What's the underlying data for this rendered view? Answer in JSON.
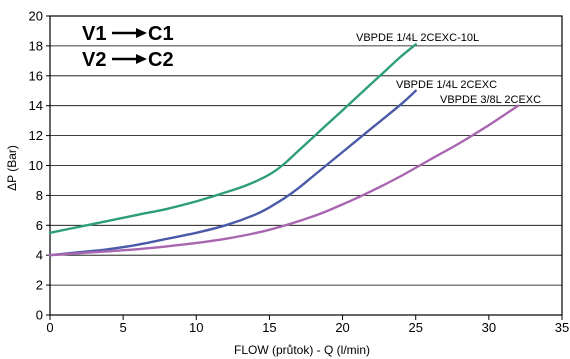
{
  "chart_data": {
    "type": "line",
    "title": "",
    "xlabel": "FLOW (průtok) - Q (l/min)",
    "ylabel": "ΔP (Bar)",
    "xlim": [
      0,
      35
    ],
    "ylim": [
      0,
      20
    ],
    "xticks": [
      0,
      5,
      10,
      15,
      20,
      25,
      30,
      35
    ],
    "yticks": [
      0,
      2,
      4,
      6,
      8,
      10,
      12,
      14,
      16,
      18,
      20
    ],
    "grid": "horizontal",
    "annotations": [
      "V1",
      "C1",
      "V2",
      "C2"
    ],
    "series": [
      {
        "name": "VBPDE 1/4L 2CEXC-10L",
        "color": "#2e9e78",
        "x": [
          0,
          2,
          4,
          6,
          8,
          10,
          12,
          13.5,
          15,
          16,
          17,
          18,
          19,
          20,
          21,
          22,
          23,
          24,
          25
        ],
        "y": [
          5.5,
          5.9,
          6.3,
          6.7,
          7.1,
          7.6,
          8.2,
          8.7,
          9.4,
          10.1,
          11.0,
          11.9,
          12.8,
          13.7,
          14.6,
          15.5,
          16.4,
          17.3,
          18.1
        ]
      },
      {
        "name": "VBPDE 1/4L 2CEXC",
        "color": "#4a5aa8",
        "x": [
          0,
          2,
          4,
          6,
          8,
          10,
          12,
          14,
          15,
          16,
          17,
          18,
          19,
          20,
          21,
          22,
          23,
          24,
          25
        ],
        "y": [
          4.0,
          4.2,
          4.4,
          4.7,
          5.1,
          5.5,
          6.0,
          6.7,
          7.2,
          7.8,
          8.5,
          9.3,
          10.1,
          10.9,
          11.7,
          12.5,
          13.3,
          14.1,
          15.0
        ]
      },
      {
        "name": "VBPDE 3/8L 2CEXC",
        "color": "#a866b0",
        "x": [
          0,
          3,
          6,
          9,
          12,
          15,
          18,
          20,
          22,
          24,
          26,
          28,
          30,
          32
        ],
        "y": [
          4.0,
          4.2,
          4.4,
          4.7,
          5.1,
          5.7,
          6.6,
          7.4,
          8.3,
          9.3,
          10.4,
          11.5,
          12.7,
          14.0
        ]
      }
    ]
  }
}
